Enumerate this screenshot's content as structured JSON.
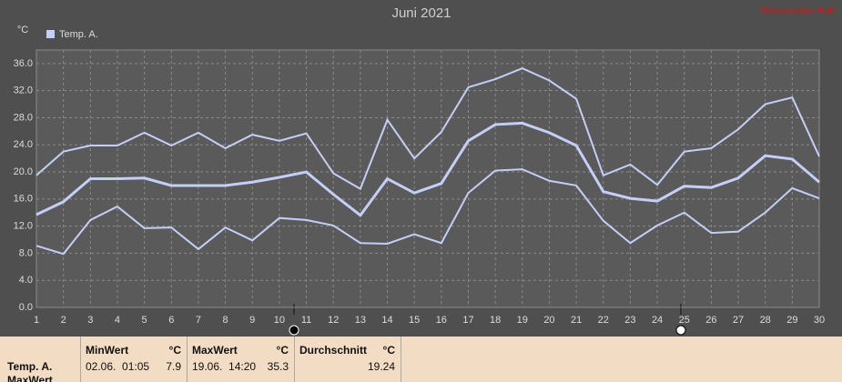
{
  "chart_data": {
    "type": "line",
    "title": "Juni 2021",
    "source_note": "Wetterstation Halle",
    "ylabel": "°C",
    "x": [
      1,
      2,
      3,
      4,
      5,
      6,
      7,
      8,
      9,
      10,
      11,
      12,
      13,
      14,
      15,
      16,
      17,
      18,
      19,
      20,
      21,
      22,
      23,
      24,
      25,
      26,
      27,
      28,
      29,
      30
    ],
    "series": [
      {
        "name": "Temp. A.",
        "color": "#c3cff7",
        "values": [
          13.7,
          15.6,
          19.0,
          19.0,
          19.1,
          18.0,
          18.0,
          18.0,
          18.5,
          19.2,
          20.0,
          16.7,
          13.6,
          19.0,
          16.9,
          18.3,
          24.6,
          27.0,
          27.2,
          25.8,
          23.9,
          17.1,
          16.1,
          15.7,
          17.9,
          17.7,
          19.1,
          22.4,
          21.9,
          18.5
        ],
        "high": [
          19.5,
          23.0,
          23.9,
          23.9,
          25.8,
          23.9,
          25.8,
          23.5,
          25.5,
          24.6,
          25.7,
          19.8,
          17.5,
          27.7,
          22.0,
          25.9,
          32.5,
          33.7,
          35.3,
          33.5,
          30.8,
          19.5,
          21.1,
          18.1,
          23.0,
          23.5,
          26.3,
          30.0,
          31.0,
          22.3
        ],
        "low": [
          9.1,
          7.9,
          12.9,
          14.9,
          11.7,
          11.8,
          8.6,
          11.8,
          9.9,
          13.2,
          12.9,
          12.1,
          9.5,
          9.4,
          10.8,
          9.5,
          16.9,
          20.2,
          20.4,
          18.7,
          18.0,
          12.8,
          9.5,
          12.1,
          14.0,
          11.0,
          11.2,
          14.0,
          17.6,
          16.1
        ]
      }
    ],
    "xlim": [
      1,
      30
    ],
    "xticks": [
      1,
      2,
      3,
      4,
      5,
      6,
      7,
      8,
      9,
      10,
      11,
      12,
      13,
      14,
      15,
      16,
      17,
      18,
      19,
      20,
      21,
      22,
      23,
      24,
      25,
      26,
      27,
      28,
      29,
      30
    ],
    "ylim": [
      0,
      38
    ],
    "yticks": [
      {
        "value": 0,
        "label": "0.0"
      },
      {
        "value": 4,
        "label": "4.0"
      },
      {
        "value": 8,
        "label": "8.0"
      },
      {
        "value": 12,
        "label": "12.0"
      },
      {
        "value": 16,
        "label": "16.0"
      },
      {
        "value": 20,
        "label": "20.0"
      },
      {
        "value": 24,
        "label": "24.0"
      },
      {
        "value": 28,
        "label": "28.0"
      },
      {
        "value": 32,
        "label": "32.0"
      },
      {
        "value": 36,
        "label": "36.0"
      }
    ],
    "grid": true
  },
  "table": {
    "row_label": "Temp. A.",
    "row_label_2": "MaxWert",
    "groups": [
      {
        "title": "MinWert",
        "unit": "°C",
        "time": "02.06.  01:05",
        "value": "7.9"
      },
      {
        "title": "MaxWert",
        "unit": "°C",
        "time": "19.06.  14:20",
        "value": "35.3"
      },
      {
        "title": "Durchschnitt",
        "unit": "°C",
        "time": "",
        "value": "19.24"
      }
    ]
  }
}
